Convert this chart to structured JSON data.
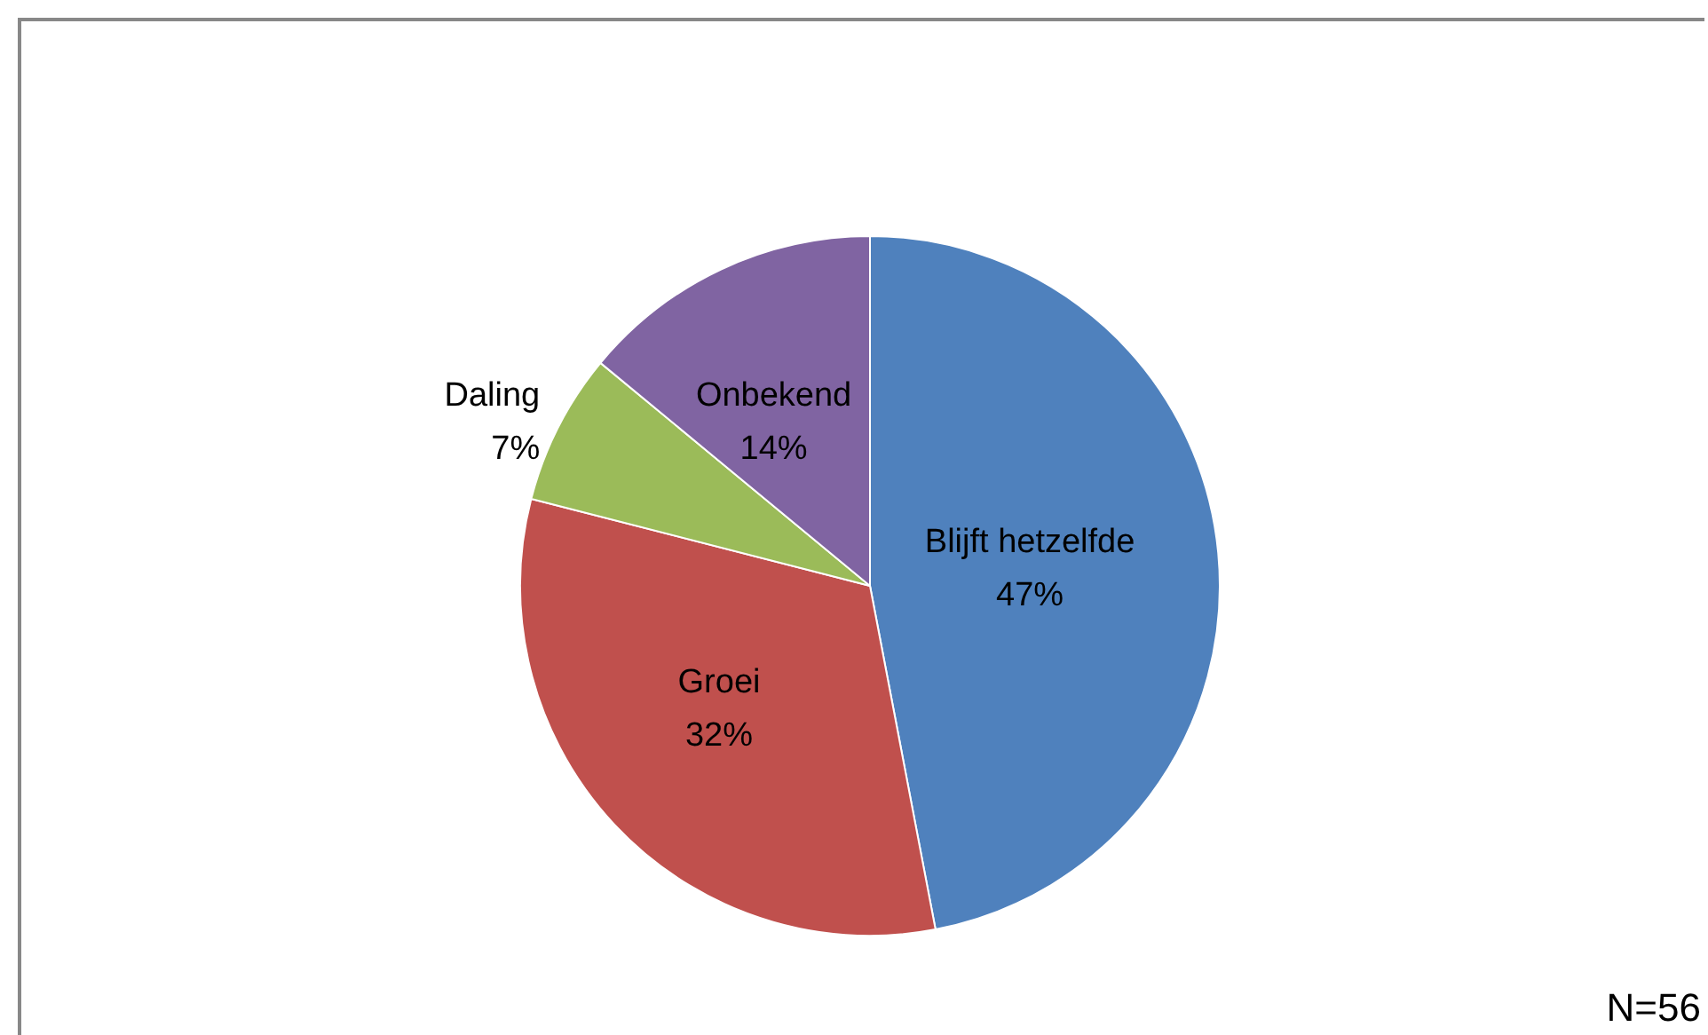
{
  "chart_data": {
    "type": "pie",
    "categories": [
      "Blijft hetzelfde",
      "Groei",
      "Daling",
      "Onbekend"
    ],
    "values": [
      47,
      32,
      7,
      14
    ],
    "value_labels": [
      "47%",
      "32%",
      "7%",
      "14%"
    ],
    "colors": [
      "#4f81bd",
      "#c0504d",
      "#9bbb59",
      "#8064a2"
    ],
    "legend": false,
    "annotations": [
      "N=56"
    ]
  }
}
